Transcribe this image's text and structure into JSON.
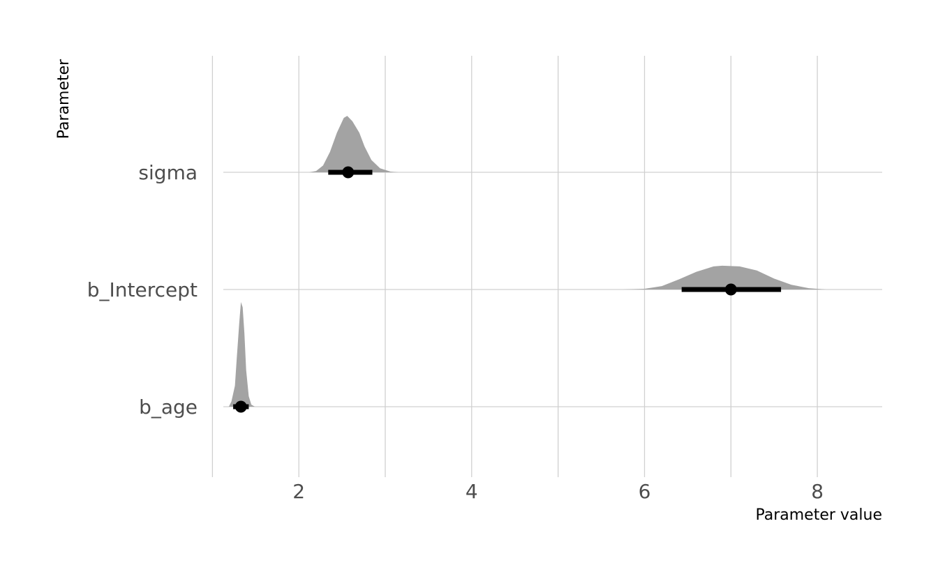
{
  "chart_data": {
    "type": "halfeye",
    "xlabel": "Parameter value",
    "ylabel": "Parameter",
    "xlim": [
      0.9,
      8.75
    ],
    "x_ticks": [
      2,
      4,
      6,
      8
    ],
    "x_minor_ticks": [
      1,
      3,
      5,
      7
    ],
    "grid": true,
    "categories": [
      "sigma",
      "b_Intercept",
      "b_age"
    ],
    "parameters": [
      {
        "name": "sigma",
        "point": 2.57,
        "interval": [
          2.34,
          2.85
        ],
        "density": [
          [
            2.12,
            0
          ],
          [
            2.2,
            0.02
          ],
          [
            2.28,
            0.1
          ],
          [
            2.36,
            0.3
          ],
          [
            2.44,
            0.58
          ],
          [
            2.52,
            0.8
          ],
          [
            2.56,
            0.83
          ],
          [
            2.62,
            0.75
          ],
          [
            2.7,
            0.58
          ],
          [
            2.76,
            0.38
          ],
          [
            2.84,
            0.18
          ],
          [
            2.94,
            0.06
          ],
          [
            3.06,
            0.01
          ],
          [
            3.15,
            0
          ]
        ]
      },
      {
        "name": "b_Intercept",
        "point": 7.0,
        "interval": [
          6.43,
          7.58
        ],
        "density": [
          [
            5.75,
            0
          ],
          [
            6.0,
            0.01
          ],
          [
            6.2,
            0.05
          ],
          [
            6.4,
            0.15
          ],
          [
            6.6,
            0.26
          ],
          [
            6.8,
            0.34
          ],
          [
            6.9,
            0.35
          ],
          [
            7.1,
            0.34
          ],
          [
            7.3,
            0.28
          ],
          [
            7.5,
            0.16
          ],
          [
            7.7,
            0.07
          ],
          [
            7.9,
            0.02
          ],
          [
            8.1,
            0
          ]
        ]
      },
      {
        "name": "b_age",
        "point": 1.33,
        "interval": [
          1.24,
          1.42
        ],
        "density": [
          [
            1.19,
            0
          ],
          [
            1.22,
            0.05
          ],
          [
            1.26,
            0.2
          ],
          [
            1.28,
            0.45
          ],
          [
            1.31,
            0.8
          ],
          [
            1.33,
            1.0
          ],
          [
            1.35,
            0.95
          ],
          [
            1.37,
            0.7
          ],
          [
            1.39,
            0.35
          ],
          [
            1.42,
            0.1
          ],
          [
            1.45,
            0.02
          ],
          [
            1.49,
            0
          ]
        ]
      }
    ]
  }
}
